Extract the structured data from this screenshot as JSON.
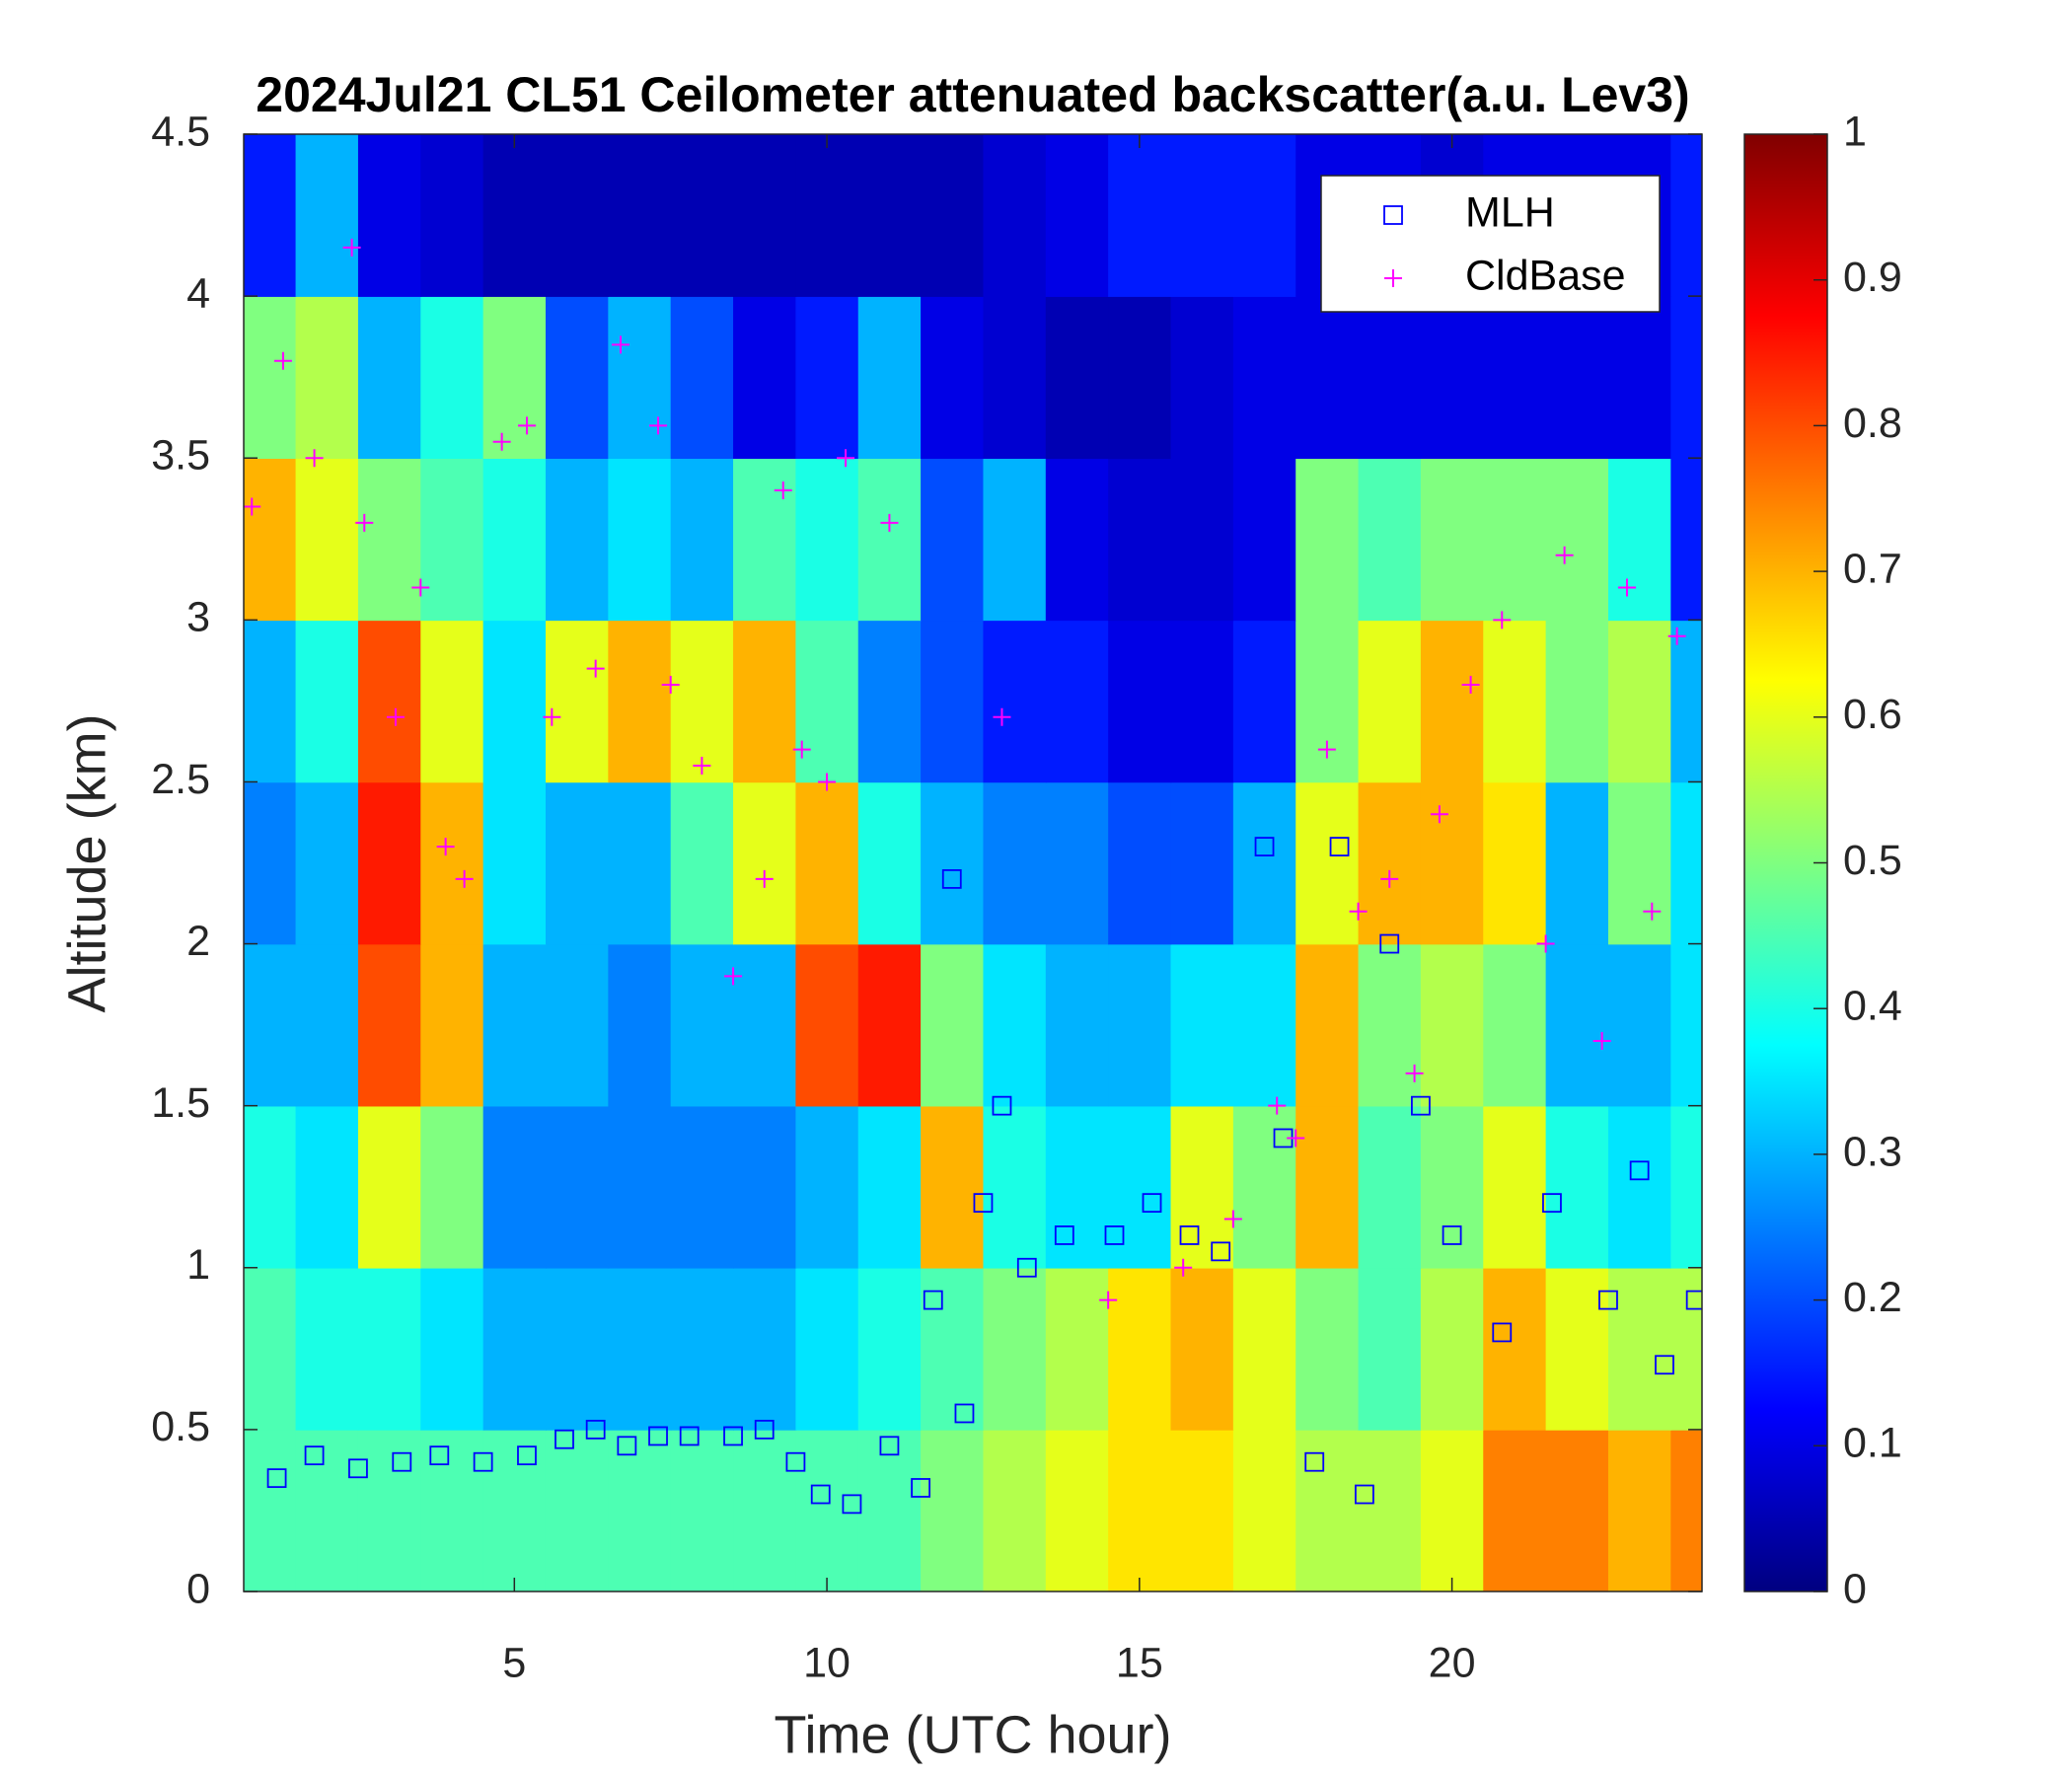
{
  "chart_data": {
    "type": "heatmap",
    "title": "2024Jul21 CL51 Ceilometer attenuated backscatter(a.u. Lev3)",
    "xlabel": "Time (UTC hour)",
    "ylabel": "Altitude (km)",
    "xlim": [
      0.67,
      24
    ],
    "xticks": [
      5,
      10,
      15,
      20
    ],
    "ylim": [
      0,
      4.5
    ],
    "yticks": [
      0,
      0.5,
      1,
      1.5,
      2,
      2.5,
      3,
      3.5,
      4,
      4.5
    ],
    "colormap": "jet",
    "legend": "upper right",
    "heatmap": {
      "x": [
        1,
        2,
        3,
        4,
        5,
        6,
        7,
        8,
        9,
        10,
        11,
        12,
        13,
        14,
        15,
        16,
        17,
        18,
        19,
        20,
        21,
        22,
        23,
        24
      ],
      "y": [
        0.25,
        0.75,
        1.25,
        1.75,
        2.25,
        2.75,
        3.25,
        3.75,
        4.25
      ],
      "z": [
        [
          0.45,
          0.45,
          0.45,
          0.45,
          0.45,
          0.45,
          0.45,
          0.45,
          0.45,
          0.45,
          0.45,
          0.5,
          0.55,
          0.6,
          0.65,
          0.65,
          0.6,
          0.55,
          0.55,
          0.6,
          0.75,
          0.75,
          0.7,
          0.75
        ],
        [
          0.45,
          0.4,
          0.4,
          0.35,
          0.3,
          0.3,
          0.3,
          0.3,
          0.3,
          0.35,
          0.4,
          0.45,
          0.5,
          0.55,
          0.65,
          0.7,
          0.6,
          0.5,
          0.45,
          0.55,
          0.7,
          0.6,
          0.55,
          0.55
        ],
        [
          0.4,
          0.35,
          0.6,
          0.5,
          0.25,
          0.25,
          0.25,
          0.25,
          0.25,
          0.3,
          0.35,
          0.7,
          0.4,
          0.35,
          0.35,
          0.6,
          0.5,
          0.7,
          0.45,
          0.5,
          0.6,
          0.4,
          0.35,
          0.4
        ],
        [
          0.3,
          0.3,
          0.8,
          0.7,
          0.3,
          0.3,
          0.25,
          0.3,
          0.3,
          0.8,
          0.85,
          0.5,
          0.35,
          0.3,
          0.3,
          0.35,
          0.35,
          0.7,
          0.5,
          0.55,
          0.5,
          0.3,
          0.3,
          0.35
        ],
        [
          0.25,
          0.3,
          0.85,
          0.7,
          0.35,
          0.3,
          0.3,
          0.45,
          0.6,
          0.7,
          0.4,
          0.3,
          0.25,
          0.25,
          0.2,
          0.2,
          0.3,
          0.6,
          0.7,
          0.7,
          0.65,
          0.3,
          0.5,
          0.35
        ],
        [
          0.3,
          0.4,
          0.8,
          0.6,
          0.35,
          0.6,
          0.7,
          0.6,
          0.7,
          0.45,
          0.25,
          0.2,
          0.15,
          0.15,
          0.1,
          0.1,
          0.15,
          0.5,
          0.6,
          0.7,
          0.6,
          0.5,
          0.55,
          0.3
        ],
        [
          0.7,
          0.6,
          0.5,
          0.45,
          0.4,
          0.3,
          0.35,
          0.3,
          0.45,
          0.4,
          0.45,
          0.2,
          0.3,
          0.1,
          0.08,
          0.08,
          0.1,
          0.5,
          0.45,
          0.5,
          0.5,
          0.5,
          0.4,
          0.15
        ],
        [
          0.5,
          0.55,
          0.3,
          0.4,
          0.5,
          0.2,
          0.3,
          0.2,
          0.1,
          0.15,
          0.3,
          0.1,
          0.08,
          0.05,
          0.05,
          0.08,
          0.1,
          0.1,
          0.1,
          0.1,
          0.1,
          0.1,
          0.1,
          0.15
        ],
        [
          0.15,
          0.3,
          0.1,
          0.08,
          0.05,
          0.05,
          0.05,
          0.05,
          0.05,
          0.05,
          0.05,
          0.05,
          0.08,
          0.1,
          0.15,
          0.15,
          0.15,
          0.1,
          0.1,
          0.08,
          0.1,
          0.1,
          0.1,
          0.15
        ]
      ]
    },
    "series": [
      {
        "name": "MLH",
        "color": "#0000ff",
        "marker": "square",
        "x": [
          1.2,
          1.8,
          2.5,
          3.2,
          3.8,
          4.5,
          5.2,
          5.8,
          6.3,
          6.8,
          7.3,
          7.8,
          8.5,
          9.0,
          9.5,
          9.9,
          10.4,
          11.0,
          11.5,
          11.7,
          12.0,
          12.2,
          12.5,
          12.8,
          13.2,
          13.8,
          14.6,
          15.2,
          15.8,
          16.3,
          17.0,
          17.3,
          17.8,
          18.2,
          18.6,
          19.0,
          19.5,
          20.0,
          20.8,
          21.6,
          22.5,
          23.0,
          23.4,
          23.9
        ],
        "values": [
          0.35,
          0.42,
          0.38,
          0.4,
          0.42,
          0.4,
          0.42,
          0.47,
          0.5,
          0.45,
          0.48,
          0.48,
          0.48,
          0.5,
          0.4,
          0.3,
          0.27,
          0.45,
          0.32,
          0.9,
          2.2,
          0.55,
          1.2,
          1.5,
          1.0,
          1.1,
          1.1,
          1.2,
          1.1,
          1.05,
          2.3,
          1.4,
          0.4,
          2.3,
          0.3,
          2.0,
          1.5,
          1.1,
          0.8,
          1.2,
          0.9,
          1.3,
          0.7,
          0.9
        ]
      },
      {
        "name": "CldBase",
        "color": "#ff00ff",
        "marker": "plus",
        "x": [
          0.8,
          1.3,
          1.8,
          2.4,
          2.6,
          3.1,
          3.5,
          3.9,
          4.2,
          4.8,
          5.2,
          5.6,
          6.3,
          6.7,
          7.3,
          7.5,
          8.0,
          8.5,
          9.0,
          9.3,
          9.6,
          10.0,
          10.3,
          11.0,
          12.8,
          14.5,
          15.7,
          16.5,
          17.2,
          17.5,
          18.0,
          18.5,
          19.0,
          19.4,
          19.8,
          20.3,
          20.8,
          21.5,
          21.8,
          22.4,
          22.8,
          23.2,
          23.6
        ],
        "values": [
          3.35,
          3.8,
          3.5,
          4.15,
          3.3,
          2.7,
          3.1,
          2.3,
          2.2,
          3.55,
          3.6,
          2.7,
          2.85,
          3.85,
          3.6,
          2.8,
          2.55,
          1.9,
          2.2,
          3.4,
          2.6,
          2.5,
          3.5,
          3.3,
          2.7,
          0.9,
          1.0,
          1.15,
          1.5,
          1.4,
          2.6,
          2.1,
          2.2,
          1.6,
          2.4,
          2.8,
          3.0,
          2.0,
          3.2,
          1.7,
          3.1,
          2.1,
          2.95
        ]
      }
    ],
    "colorbar": {
      "lim": [
        0,
        1
      ],
      "ticks": [
        0,
        0.1,
        0.2,
        0.3,
        0.4,
        0.5,
        0.6,
        0.7,
        0.8,
        0.9,
        1
      ]
    }
  }
}
